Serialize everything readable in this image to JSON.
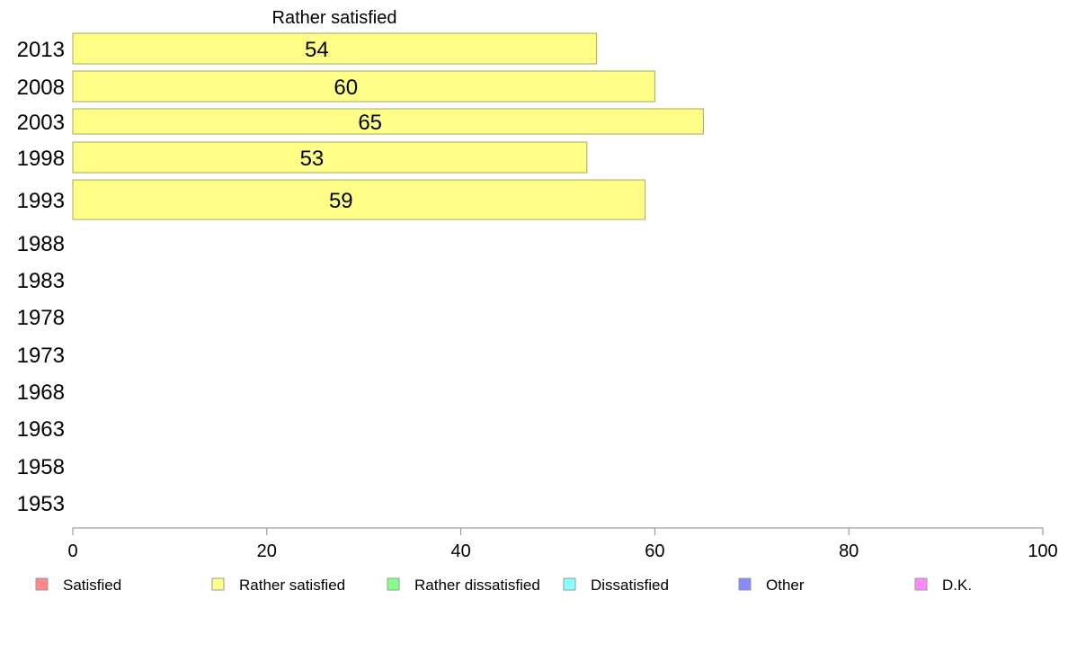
{
  "chart_data": {
    "type": "bar",
    "orientation": "horizontal",
    "title": "Rather satisfied",
    "categories": [
      "2013",
      "2008",
      "2003",
      "1998",
      "1993",
      "1988",
      "1983",
      "1978",
      "1973",
      "1968",
      "1963",
      "1958",
      "1953"
    ],
    "series": [
      {
        "name": "Rather satisfied",
        "color": "#ffff88",
        "values": [
          54,
          60,
          65,
          53,
          59,
          null,
          null,
          null,
          null,
          null,
          null,
          null,
          null
        ]
      }
    ],
    "data_labels": [
      "54",
      "60",
      "65",
      "53",
      "59"
    ],
    "xlim": [
      0,
      100
    ],
    "xticks": [
      "0",
      "20",
      "40",
      "60",
      "80",
      "100"
    ],
    "grid": false,
    "legend_position": "bottom",
    "legend": [
      {
        "label": "Satisfied",
        "color": "#ff8888"
      },
      {
        "label": "Rather satisfied",
        "color": "#ffff88"
      },
      {
        "label": "Rather dissatisfied",
        "color": "#88ff88"
      },
      {
        "label": "Dissatisfied",
        "color": "#88ffff"
      },
      {
        "label": "Other",
        "color": "#8888ff"
      },
      {
        "label": "D.K.",
        "color": "#ff88ff"
      }
    ]
  }
}
